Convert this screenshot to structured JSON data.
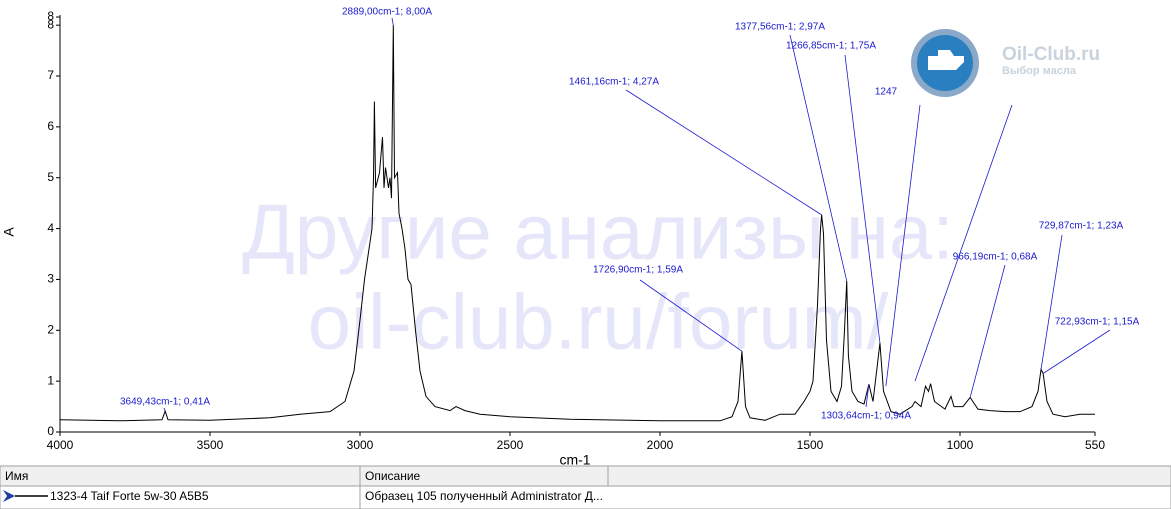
{
  "chart_data": {
    "type": "line",
    "x_label": "cm-1",
    "y_label": "A",
    "xlim": [
      4000,
      550
    ],
    "xticks": [
      4000,
      3500,
      3000,
      2500,
      2000,
      1500,
      1000,
      550
    ],
    "ylim": [
      0,
      8.2
    ],
    "yticks": [
      0,
      1,
      2,
      3,
      4,
      5,
      6,
      7,
      8,
      {
        "value": 8.16,
        "label": "8"
      }
    ],
    "x": [
      4000,
      3800,
      3660,
      3649.43,
      3640,
      3500,
      3300,
      3200,
      3100,
      3050,
      3020,
      3000,
      2985,
      2970,
      2960,
      2955,
      2952,
      2948,
      2935,
      2925,
      2920,
      2915,
      2905,
      2900,
      2895,
      2889,
      2885,
      2875,
      2870,
      2860,
      2850,
      2840,
      2830,
      2815,
      2800,
      2780,
      2750,
      2700,
      2680,
      2650,
      2600,
      2500,
      2300,
      2000,
      1800,
      1760,
      1740,
      1726.9,
      1715,
      1700,
      1650,
      1600,
      1550,
      1520,
      1500,
      1490,
      1475,
      1465,
      1461.16,
      1455,
      1445,
      1430,
      1410,
      1395,
      1385,
      1377.56,
      1372,
      1360,
      1340,
      1320,
      1303.64,
      1290,
      1266.85,
      1255,
      1230,
      1200,
      1160,
      1150,
      1130,
      1115,
      1105,
      1098,
      1085,
      1050,
      1030,
      1020,
      990,
      966.19,
      940,
      900,
      850,
      800,
      760,
      740,
      729.87,
      722.93,
      710,
      690,
      650,
      600,
      550
    ],
    "series": [
      {
        "color": "#000000",
        "values": [
          0.24,
          0.22,
          0.24,
          0.41,
          0.24,
          0.23,
          0.28,
          0.35,
          0.4,
          0.6,
          1.2,
          2.2,
          3.0,
          3.6,
          4.0,
          5.0,
          6.5,
          4.8,
          5.1,
          5.8,
          4.8,
          5.2,
          4.8,
          5.0,
          4.6,
          8.0,
          5.0,
          5.1,
          4.3,
          4.0,
          3.6,
          3.0,
          2.9,
          2.0,
          1.2,
          0.7,
          0.5,
          0.42,
          0.5,
          0.42,
          0.35,
          0.3,
          0.25,
          0.22,
          0.22,
          0.3,
          0.6,
          1.59,
          0.5,
          0.28,
          0.23,
          0.35,
          0.35,
          0.6,
          0.8,
          1.0,
          2.5,
          4.0,
          4.27,
          3.9,
          1.8,
          0.8,
          0.6,
          0.9,
          2.0,
          2.97,
          1.5,
          0.8,
          0.6,
          0.55,
          0.94,
          0.6,
          1.75,
          0.8,
          0.4,
          0.35,
          0.5,
          0.6,
          0.5,
          0.9,
          0.8,
          0.95,
          0.6,
          0.45,
          0.7,
          0.5,
          0.5,
          0.68,
          0.45,
          0.42,
          0.4,
          0.4,
          0.5,
          0.8,
          1.23,
          1.15,
          0.6,
          0.35,
          0.3,
          0.35,
          0.35
        ]
      }
    ],
    "annotation_color": "#1a1ad0",
    "annotations": [
      {
        "text": "3649,43cm-1; 0,41A",
        "x": 3649.43,
        "y": 0.41
      },
      {
        "text": "2889,00cm-1; 8,00A",
        "x": 2889,
        "y": 8.0
      },
      {
        "text": "1726,90cm-1; 1,59A",
        "x": 1726.9,
        "y": 1.59
      },
      {
        "text": "1461,16cm-1; 4,27A",
        "x": 1461.16,
        "y": 4.27
      },
      {
        "text": "1377,56cm-1; 2,97A",
        "x": 1377.56,
        "y": 2.97
      },
      {
        "text": "1266,85cm-1; 1,75A",
        "x": 1266.85,
        "y": 1.75
      },
      {
        "text": "1247",
        "x": 1247,
        "y": 0.9
      },
      {
        "text": null,
        "x": 1150,
        "y": 1.0
      },
      {
        "text": "966,19cm-1; 0,68A",
        "x": 966.19,
        "y": 0.68
      },
      {
        "text": "729,87cm-1; 1,23A",
        "x": 729.87,
        "y": 1.23
      },
      {
        "text": "722,93cm-1; 1,15A",
        "x": 722.93,
        "y": 1.15
      },
      {
        "text": "1303,64cm-1; 0,94A",
        "x": 1303.64,
        "y": 0.94
      }
    ]
  },
  "watermark": [
    "Другие анализы на:",
    "oil-club.ru/forum/"
  ],
  "logo": {
    "title": "Oil-Club.ru",
    "subtitle": "Выбор масла"
  },
  "table": {
    "columns": [
      "Имя",
      "Описание"
    ],
    "rows": [
      [
        "1323-4 Taif Forte 5w-30 A5B5",
        "Образец 105 полученный Administrator Д..."
      ]
    ]
  }
}
